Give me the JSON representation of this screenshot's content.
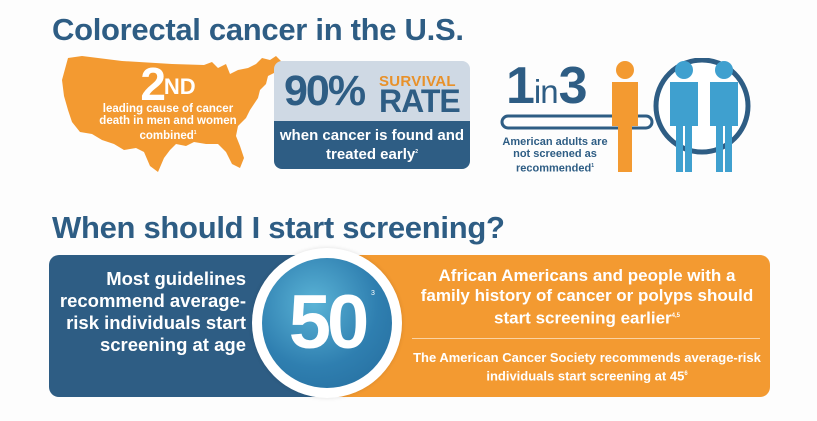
{
  "headings": {
    "main": "Colorectal cancer in the U.S.",
    "screening": "When should I start screening?"
  },
  "stat_rank": {
    "rank": "2",
    "suffix": "ND",
    "description": "leading cause of cancer death in men and women combined",
    "footnote": "1"
  },
  "stat_survival": {
    "percent": "90%",
    "survival": "SURVIVAL",
    "rate": "RATE",
    "caption": "when cancer is found and treated early",
    "footnote": "2"
  },
  "stat_ratio": {
    "one": "1",
    "in": "in",
    "three": "3",
    "caption": "American adults are not screened as recommended",
    "footnote": "1"
  },
  "banner": {
    "left": "Most guidelines recommend average-risk individuals start screening at age",
    "age": "50",
    "age_footnote": "3",
    "right_primary": "African Americans and people with a family history of cancer or polyps should start screening earlier",
    "right_primary_footnote": "4,5",
    "right_secondary": "The American Cancer Society recommends average-risk individuals start screening at 45",
    "right_secondary_footnote": "6"
  },
  "colors": {
    "navy": "#2e5d84",
    "orange": "#f39a31",
    "light_blue": "#cfd9e4",
    "teal": "#4fa3cc"
  }
}
